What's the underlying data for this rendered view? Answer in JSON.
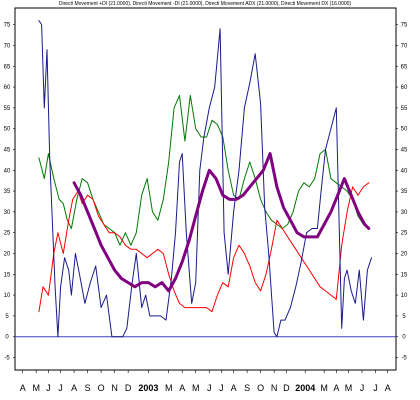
{
  "chart_data": {
    "type": "line",
    "title": "Directi Movement +DI (21.0000), Directi Movement -DI (21.0000), Directi Movement ADX (21.0000), Directi Movement DX (16.0000)",
    "ylim": [
      -8,
      79
    ],
    "yticks": [
      -5,
      0,
      5,
      10,
      15,
      20,
      25,
      30,
      35,
      40,
      45,
      50,
      55,
      60,
      65,
      70,
      75
    ],
    "xlim": [
      0,
      27
    ],
    "xticks": [
      {
        "label": "A",
        "x": 0.2,
        "bold": false
      },
      {
        "label": "M",
        "x": 1.2,
        "bold": false
      },
      {
        "label": "J",
        "x": 2.1,
        "bold": false
      },
      {
        "label": "J",
        "x": 3.0,
        "bold": false
      },
      {
        "label": "A",
        "x": 4.0,
        "bold": false
      },
      {
        "label": "S",
        "x": 5.0,
        "bold": false
      },
      {
        "label": "O",
        "x": 6.0,
        "bold": false
      },
      {
        "label": "N",
        "x": 7.0,
        "bold": false
      },
      {
        "label": "D",
        "x": 8.0,
        "bold": false
      },
      {
        "label": "2003",
        "x": 9.5,
        "bold": true
      },
      {
        "label": "M",
        "x": 11.0,
        "bold": false
      },
      {
        "label": "A",
        "x": 12.0,
        "bold": false
      },
      {
        "label": "M",
        "x": 13.0,
        "bold": false
      },
      {
        "label": "J",
        "x": 14.0,
        "bold": false
      },
      {
        "label": "J",
        "x": 14.9,
        "bold": false
      },
      {
        "label": "A",
        "x": 15.8,
        "bold": false
      },
      {
        "label": "S",
        "x": 16.8,
        "bold": false
      },
      {
        "label": "O",
        "x": 17.8,
        "bold": false
      },
      {
        "label": "N",
        "x": 18.8,
        "bold": false
      },
      {
        "label": "D",
        "x": 19.7,
        "bold": false
      },
      {
        "label": "2004",
        "x": 21.1,
        "bold": true
      },
      {
        "label": "M",
        "x": 22.5,
        "bold": false
      },
      {
        "label": "A",
        "x": 23.4,
        "bold": false
      },
      {
        "label": "M",
        "x": 24.3,
        "bold": false
      },
      {
        "label": "J",
        "x": 25.3,
        "bold": false
      },
      {
        "label": "J",
        "x": 26.3,
        "bold": false
      },
      {
        "label": "A",
        "x": 27.2,
        "bold": false
      }
    ],
    "zero_line": {
      "value": 0,
      "color": "#4040c0"
    },
    "grid": false,
    "series": [
      {
        "name": "Directi Movement +DI",
        "color": "#007a00",
        "width": 1,
        "points": [
          [
            1.4,
            43
          ],
          [
            1.8,
            38
          ],
          [
            2.1,
            44
          ],
          [
            2.5,
            38
          ],
          [
            2.9,
            33
          ],
          [
            3.2,
            32
          ],
          [
            3.5,
            28
          ],
          [
            3.8,
            26
          ],
          [
            4.2,
            33
          ],
          [
            4.6,
            38
          ],
          [
            5.0,
            37
          ],
          [
            5.4,
            33
          ],
          [
            5.8,
            30
          ],
          [
            6.2,
            27
          ],
          [
            6.6,
            26
          ],
          [
            7.0,
            25
          ],
          [
            7.4,
            22
          ],
          [
            7.8,
            25
          ],
          [
            8.2,
            22
          ],
          [
            8.6,
            25
          ],
          [
            9.0,
            34
          ],
          [
            9.4,
            38
          ],
          [
            9.8,
            30
          ],
          [
            10.2,
            28
          ],
          [
            10.6,
            33
          ],
          [
            11.0,
            42
          ],
          [
            11.4,
            55
          ],
          [
            11.8,
            58
          ],
          [
            12.2,
            47
          ],
          [
            12.6,
            58
          ],
          [
            13.0,
            50
          ],
          [
            13.4,
            48
          ],
          [
            13.8,
            48
          ],
          [
            14.2,
            52
          ],
          [
            14.6,
            51
          ],
          [
            15.0,
            48
          ],
          [
            15.4,
            40
          ],
          [
            15.8,
            34
          ],
          [
            16.2,
            33
          ],
          [
            16.6,
            38
          ],
          [
            17.0,
            42
          ],
          [
            17.4,
            38
          ],
          [
            17.8,
            33
          ],
          [
            18.2,
            30
          ],
          [
            18.6,
            28
          ],
          [
            19.0,
            27
          ],
          [
            19.4,
            26
          ],
          [
            19.8,
            27
          ],
          [
            20.2,
            30
          ],
          [
            20.6,
            35
          ],
          [
            21.0,
            37
          ],
          [
            21.4,
            36
          ],
          [
            21.8,
            38
          ],
          [
            22.2,
            44
          ],
          [
            22.6,
            45
          ],
          [
            23.0,
            38
          ],
          [
            23.4,
            37
          ],
          [
            23.8,
            36
          ],
          [
            24.2,
            35
          ],
          [
            24.6,
            33
          ],
          [
            25.0,
            29
          ],
          [
            25.4,
            27
          ],
          [
            25.8,
            26
          ]
        ]
      },
      {
        "name": "Directi Movement -DI",
        "color": "#ff0000",
        "width": 1,
        "points": [
          [
            1.4,
            6
          ],
          [
            1.7,
            12
          ],
          [
            2.1,
            10
          ],
          [
            2.5,
            20
          ],
          [
            2.8,
            25
          ],
          [
            3.2,
            20
          ],
          [
            3.6,
            28
          ],
          [
            3.9,
            33
          ],
          [
            4.3,
            35
          ],
          [
            4.6,
            32
          ],
          [
            5.0,
            34
          ],
          [
            5.4,
            33
          ],
          [
            5.8,
            29
          ],
          [
            6.2,
            27
          ],
          [
            6.6,
            25
          ],
          [
            7.0,
            25
          ],
          [
            7.4,
            24
          ],
          [
            7.8,
            22
          ],
          [
            8.2,
            21
          ],
          [
            8.6,
            21
          ],
          [
            9.0,
            20
          ],
          [
            9.4,
            19
          ],
          [
            9.8,
            20
          ],
          [
            10.2,
            21
          ],
          [
            10.6,
            20
          ],
          [
            11.0,
            15
          ],
          [
            11.4,
            11
          ],
          [
            11.8,
            8
          ],
          [
            12.2,
            7
          ],
          [
            12.6,
            7
          ],
          [
            13.0,
            7
          ],
          [
            13.4,
            7
          ],
          [
            13.8,
            7
          ],
          [
            14.2,
            6
          ],
          [
            14.6,
            10
          ],
          [
            15.0,
            13
          ],
          [
            15.4,
            12
          ],
          [
            15.8,
            19
          ],
          [
            16.2,
            22
          ],
          [
            16.6,
            20
          ],
          [
            17.0,
            17
          ],
          [
            17.4,
            13
          ],
          [
            17.8,
            11
          ],
          [
            18.2,
            15
          ],
          [
            18.6,
            21
          ],
          [
            19.0,
            28
          ],
          [
            19.4,
            26
          ],
          [
            19.8,
            24
          ],
          [
            20.2,
            22
          ],
          [
            20.6,
            20
          ],
          [
            21.0,
            18
          ],
          [
            21.4,
            16
          ],
          [
            21.8,
            14
          ],
          [
            22.2,
            12
          ],
          [
            22.6,
            11
          ],
          [
            23.0,
            10
          ],
          [
            23.4,
            9
          ],
          [
            23.8,
            22
          ],
          [
            24.2,
            30
          ],
          [
            24.6,
            36
          ],
          [
            25.0,
            34
          ],
          [
            25.4,
            36
          ],
          [
            25.8,
            37
          ]
        ]
      },
      {
        "name": "Directi Movement ADX",
        "color": "#800080",
        "width": 3,
        "points": [
          [
            4.0,
            37
          ],
          [
            4.5,
            34
          ],
          [
            5.0,
            30
          ],
          [
            5.5,
            26
          ],
          [
            6.0,
            22
          ],
          [
            6.5,
            19
          ],
          [
            7.0,
            16
          ],
          [
            7.5,
            14
          ],
          [
            8.0,
            13
          ],
          [
            8.5,
            12
          ],
          [
            9.0,
            13
          ],
          [
            9.5,
            13
          ],
          [
            10.0,
            12
          ],
          [
            10.5,
            13
          ],
          [
            11.0,
            11
          ],
          [
            11.5,
            14
          ],
          [
            12.0,
            18
          ],
          [
            12.5,
            23
          ],
          [
            13.0,
            29
          ],
          [
            13.5,
            35
          ],
          [
            14.0,
            40
          ],
          [
            14.5,
            38
          ],
          [
            15.0,
            34
          ],
          [
            15.5,
            33
          ],
          [
            16.0,
            33
          ],
          [
            16.5,
            34
          ],
          [
            17.0,
            36
          ],
          [
            17.5,
            38
          ],
          [
            18.0,
            40
          ],
          [
            18.5,
            44
          ],
          [
            19.0,
            36
          ],
          [
            19.5,
            31
          ],
          [
            20.0,
            28
          ],
          [
            20.5,
            25
          ],
          [
            21.0,
            24
          ],
          [
            21.5,
            24
          ],
          [
            22.0,
            24
          ],
          [
            22.5,
            27
          ],
          [
            23.0,
            30
          ],
          [
            23.5,
            34
          ],
          [
            24.0,
            38
          ],
          [
            24.5,
            34
          ],
          [
            25.0,
            30
          ],
          [
            25.5,
            27
          ],
          [
            25.8,
            26
          ]
        ]
      },
      {
        "name": "Directi Movement DX",
        "color": "#1a1a8c",
        "width": 1,
        "points": [
          [
            1.4,
            76
          ],
          [
            1.6,
            75
          ],
          [
            1.8,
            55
          ],
          [
            2.0,
            69
          ],
          [
            2.2,
            43
          ],
          [
            2.6,
            12
          ],
          [
            2.8,
            0
          ],
          [
            3.0,
            12
          ],
          [
            3.3,
            19
          ],
          [
            3.6,
            16
          ],
          [
            3.8,
            10
          ],
          [
            4.1,
            20
          ],
          [
            4.4,
            15
          ],
          [
            4.8,
            8
          ],
          [
            5.2,
            13
          ],
          [
            5.6,
            17
          ],
          [
            6.0,
            7
          ],
          [
            6.4,
            10
          ],
          [
            6.8,
            0
          ],
          [
            7.2,
            0
          ],
          [
            7.6,
            0
          ],
          [
            7.9,
            2
          ],
          [
            8.3,
            13
          ],
          [
            8.6,
            20
          ],
          [
            9.0,
            7
          ],
          [
            9.3,
            10
          ],
          [
            9.6,
            5
          ],
          [
            10.0,
            5
          ],
          [
            10.4,
            5
          ],
          [
            10.8,
            4
          ],
          [
            11.2,
            14
          ],
          [
            11.5,
            25
          ],
          [
            11.8,
            42
          ],
          [
            12.0,
            44
          ],
          [
            12.3,
            25
          ],
          [
            12.7,
            8
          ],
          [
            13.0,
            13
          ],
          [
            13.3,
            40
          ],
          [
            13.6,
            48
          ],
          [
            14.0,
            55
          ],
          [
            14.4,
            60
          ],
          [
            14.8,
            74
          ],
          [
            15.1,
            25
          ],
          [
            15.4,
            15
          ],
          [
            15.8,
            30
          ],
          [
            16.2,
            40
          ],
          [
            16.6,
            55
          ],
          [
            17.0,
            61
          ],
          [
            17.4,
            68
          ],
          [
            17.8,
            56
          ],
          [
            18.1,
            31
          ],
          [
            18.4,
            20
          ],
          [
            18.8,
            1
          ],
          [
            19.0,
            0
          ],
          [
            19.3,
            4
          ],
          [
            19.6,
            4
          ],
          [
            20.0,
            7
          ],
          [
            20.4,
            12
          ],
          [
            20.8,
            18
          ],
          [
            21.2,
            25
          ],
          [
            21.6,
            26
          ],
          [
            22.0,
            26
          ],
          [
            22.3,
            36
          ],
          [
            22.6,
            45
          ],
          [
            23.0,
            50
          ],
          [
            23.4,
            55
          ],
          [
            23.8,
            2
          ],
          [
            24.0,
            14
          ],
          [
            24.2,
            16
          ],
          [
            24.5,
            11
          ],
          [
            24.8,
            8
          ],
          [
            25.1,
            16
          ],
          [
            25.4,
            4
          ],
          [
            25.7,
            16
          ],
          [
            26.0,
            19
          ]
        ]
      }
    ]
  }
}
